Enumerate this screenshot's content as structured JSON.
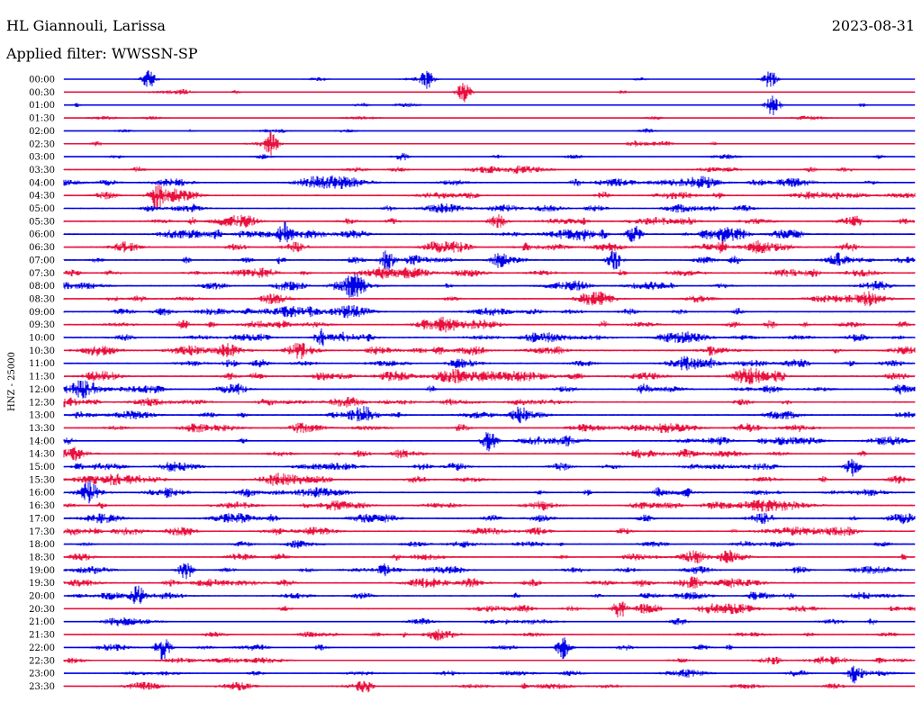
{
  "header": {
    "station": "HL Giannouli, Larissa",
    "date": "2023-08-31",
    "filter": "Applied filter: WWSSN-SP"
  },
  "colors": {
    "trace_a": "#0000e6",
    "trace_b": "#e8103e",
    "background": "#ffffff",
    "text": "#000000"
  },
  "chart_data": {
    "type": "line",
    "subtype": "helicorder",
    "channel_label": "HNZ - 25000",
    "row_labels": [
      "00:00",
      "00:30",
      "01:00",
      "01:30",
      "02:00",
      "02:30",
      "03:00",
      "03:30",
      "04:00",
      "04:30",
      "05:00",
      "05:30",
      "06:00",
      "06:30",
      "07:00",
      "07:30",
      "08:00",
      "08:30",
      "09:00",
      "09:30",
      "10:00",
      "10:30",
      "11:00",
      "11:30",
      "12:00",
      "12:30",
      "13:00",
      "13:30",
      "14:00",
      "14:30",
      "15:00",
      "15:30",
      "16:00",
      "16:30",
      "17:00",
      "17:30",
      "18:00",
      "18:30",
      "19:00",
      "19:30",
      "20:00",
      "20:30",
      "21:00",
      "21:30",
      "22:00",
      "22:30",
      "23:00",
      "23:30"
    ],
    "row_minutes": 30,
    "color_alternation": [
      "blue",
      "red"
    ],
    "activity_level": [
      0.1,
      0.12,
      0.12,
      0.15,
      0.15,
      0.2,
      0.25,
      0.35,
      0.55,
      0.55,
      0.45,
      0.6,
      0.65,
      0.65,
      0.6,
      0.6,
      0.55,
      0.5,
      0.55,
      0.6,
      0.6,
      0.7,
      0.6,
      0.7,
      0.55,
      0.6,
      0.6,
      0.55,
      0.5,
      0.5,
      0.5,
      0.5,
      0.6,
      0.6,
      0.6,
      0.6,
      0.45,
      0.5,
      0.5,
      0.55,
      0.5,
      0.45,
      0.4,
      0.4,
      0.35,
      0.35,
      0.35,
      0.35
    ],
    "notable_events": [
      {
        "row": "00:00",
        "minute": 3.0
      },
      {
        "row": "00:00",
        "minute": 12.8
      },
      {
        "row": "00:00",
        "minute": 24.9
      },
      {
        "row": "00:30",
        "minute": 14.1
      },
      {
        "row": "01:00",
        "minute": 25.0
      },
      {
        "row": "02:30",
        "minute": 7.3
      },
      {
        "row": "04:30",
        "minute": 3.3
      },
      {
        "row": "06:00",
        "minute": 7.8
      },
      {
        "row": "06:00",
        "minute": 20.1
      },
      {
        "row": "07:00",
        "minute": 11.4
      },
      {
        "row": "07:00",
        "minute": 19.4
      },
      {
        "row": "08:00",
        "minute": 10.2
      },
      {
        "row": "10:00",
        "minute": 9.1
      },
      {
        "row": "14:00",
        "minute": 15.0
      },
      {
        "row": "15:00",
        "minute": 27.8
      },
      {
        "row": "16:00",
        "minute": 0.9
      },
      {
        "row": "19:00",
        "minute": 4.3
      },
      {
        "row": "20:00",
        "minute": 2.6
      },
      {
        "row": "20:30",
        "minute": 19.6
      },
      {
        "row": "22:00",
        "minute": 3.5
      },
      {
        "row": "22:00",
        "minute": 17.6
      },
      {
        "row": "23:00",
        "minute": 27.9
      },
      {
        "row": "23:30",
        "minute": 10.6
      }
    ]
  }
}
